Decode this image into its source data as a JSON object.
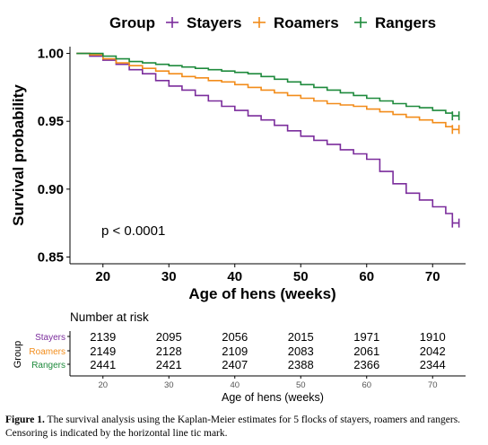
{
  "chart_data": [
    {
      "type": "line",
      "subtype": "kaplan-meier",
      "legend": {
        "title": "Group",
        "placement": "top",
        "entries": [
          {
            "label": "Stayers",
            "color": "#7b2d9c"
          },
          {
            "label": "Roamers",
            "color": "#f28c1a"
          },
          {
            "label": "Rangers",
            "color": "#1e8a3c"
          }
        ]
      },
      "xlabel": "Age of hens (weeks)",
      "ylabel": "Survival probability",
      "xlim": [
        15,
        75
      ],
      "ylim": [
        0.845,
        1.005
      ],
      "xticks": [
        20,
        30,
        40,
        50,
        60,
        70
      ],
      "xtick_labels": [
        "20",
        "30",
        "40",
        "50",
        "60",
        "70"
      ],
      "yticks": [
        0.85,
        0.9,
        0.95,
        1.0
      ],
      "ytick_labels": [
        "0.85",
        "0.90",
        "0.95",
        "1.00"
      ],
      "grid": false,
      "annotation": "p < 0.0001",
      "series": [
        {
          "name": "Stayers",
          "color": "#7b2d9c",
          "x": [
            16,
            18,
            20,
            22,
            24,
            26,
            28,
            30,
            32,
            34,
            36,
            38,
            40,
            42,
            44,
            46,
            48,
            50,
            52,
            54,
            56,
            58,
            60,
            62,
            64,
            66,
            68,
            70,
            72,
            73
          ],
          "y": [
            1.0,
            0.998,
            0.995,
            0.992,
            0.988,
            0.985,
            0.98,
            0.976,
            0.973,
            0.969,
            0.965,
            0.961,
            0.958,
            0.954,
            0.951,
            0.947,
            0.943,
            0.939,
            0.936,
            0.933,
            0.929,
            0.926,
            0.922,
            0.913,
            0.904,
            0.897,
            0.892,
            0.887,
            0.882,
            0.875
          ],
          "censor_x": [
            73,
            74
          ]
        },
        {
          "name": "Roamers",
          "color": "#f28c1a",
          "x": [
            16,
            18,
            20,
            22,
            24,
            26,
            28,
            30,
            32,
            34,
            36,
            38,
            40,
            42,
            44,
            46,
            48,
            50,
            52,
            54,
            56,
            58,
            60,
            62,
            64,
            66,
            68,
            70,
            72,
            73
          ],
          "y": [
            1.0,
            0.999,
            0.996,
            0.993,
            0.991,
            0.989,
            0.987,
            0.985,
            0.983,
            0.982,
            0.98,
            0.979,
            0.977,
            0.975,
            0.973,
            0.971,
            0.969,
            0.967,
            0.965,
            0.963,
            0.962,
            0.961,
            0.959,
            0.957,
            0.955,
            0.953,
            0.951,
            0.949,
            0.946,
            0.944
          ],
          "censor_x": [
            73,
            74
          ]
        },
        {
          "name": "Rangers",
          "color": "#1e8a3c",
          "x": [
            16,
            18,
            20,
            22,
            24,
            26,
            28,
            30,
            32,
            34,
            36,
            38,
            40,
            42,
            44,
            46,
            48,
            50,
            52,
            54,
            56,
            58,
            60,
            62,
            64,
            66,
            68,
            70,
            72,
            73
          ],
          "y": [
            1.0,
            1.0,
            0.998,
            0.996,
            0.994,
            0.993,
            0.992,
            0.991,
            0.99,
            0.989,
            0.988,
            0.987,
            0.986,
            0.985,
            0.983,
            0.981,
            0.979,
            0.977,
            0.975,
            0.973,
            0.971,
            0.969,
            0.967,
            0.965,
            0.963,
            0.961,
            0.96,
            0.958,
            0.956,
            0.954
          ],
          "censor_x": [
            73,
            74
          ]
        }
      ]
    },
    {
      "type": "table",
      "title": "Number at risk",
      "ylabel": "Group",
      "xlabel": "Age of hens (weeks)",
      "columns": [
        20,
        30,
        40,
        50,
        60,
        70
      ],
      "column_labels": [
        "20",
        "30",
        "40",
        "50",
        "60",
        "70"
      ],
      "xlim": [
        15,
        75
      ],
      "rows": [
        {
          "label": "Stayers",
          "color": "#7b2d9c",
          "values": [
            "2139",
            "2095",
            "2056",
            "2015",
            "1971",
            "1910"
          ]
        },
        {
          "label": "Roamers",
          "color": "#f28c1a",
          "values": [
            "2149",
            "2128",
            "2109",
            "2083",
            "2061",
            "2042"
          ]
        },
        {
          "label": "Rangers",
          "color": "#1e8a3c",
          "values": [
            "2441",
            "2421",
            "2407",
            "2388",
            "2366",
            "2344"
          ]
        }
      ]
    }
  ],
  "caption": {
    "label": "Figure 1.",
    "text": " The survival analysis using the Kaplan-Meier estimates for 5 flocks of stayers, roamers and rangers. Censoring is indicated by the horizontal line tic mark."
  }
}
